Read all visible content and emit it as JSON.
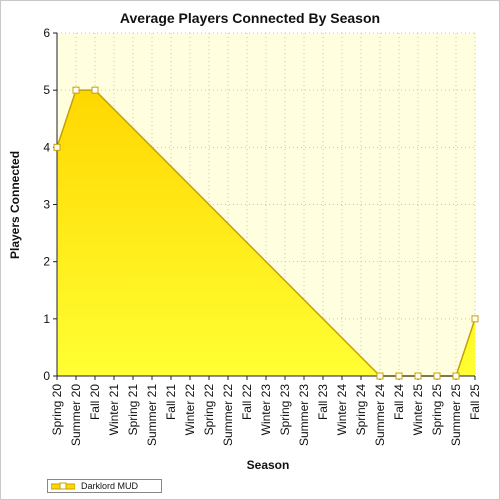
{
  "chart_data": {
    "type": "area",
    "title": "Average Players Connected By Season",
    "xlabel": "Season",
    "ylabel": "Players Connected",
    "ylim": [
      0,
      6
    ],
    "yticks": [
      0,
      1,
      2,
      3,
      4,
      5,
      6
    ],
    "grid": true,
    "legend_position": "bottom-left",
    "categories": [
      "Spring 20",
      "Summer 20",
      "Fall 20",
      "Winter 21",
      "Spring 21",
      "Summer 21",
      "Fall 21",
      "Winter 22",
      "Spring 22",
      "Summer 22",
      "Fall 22",
      "Winter 23",
      "Spring 23",
      "Summer 23",
      "Fall 23",
      "Winter 24",
      "Spring 24",
      "Summer 24",
      "Fall 24",
      "Winter 25",
      "Spring 25",
      "Summer 25",
      "Fall 25"
    ],
    "series": [
      {
        "name": "Darklord MUD",
        "color": "#ffd700",
        "x": [
          "Spring 20",
          "Summer 20",
          "Fall 20",
          "Summer 24",
          "Fall 24",
          "Winter 25",
          "Spring 25",
          "Summer 25",
          "Fall 25"
        ],
        "values": [
          4,
          5,
          5,
          0,
          0,
          0,
          0,
          0,
          1
        ]
      }
    ],
    "colors": {
      "plot_bg": "#ffffe0",
      "line": "#c8a000",
      "area_top": "#ffd700",
      "area_bottom": "#ffff33"
    }
  }
}
